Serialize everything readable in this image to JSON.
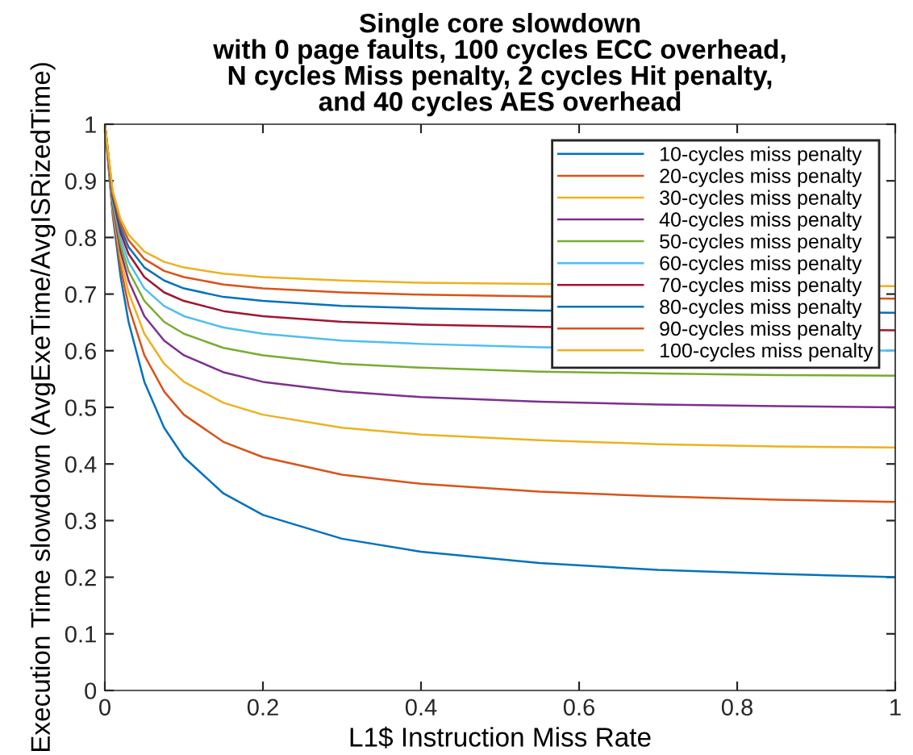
{
  "chart_data": {
    "type": "line",
    "title": "Single core slowdown\nwith 0 page faults, 100 cycles ECC overhead,\nN cycles Miss penalty, 2 cycles Hit penalty,\nand 40 cycles AES overhead",
    "xlabel": "L1$ Instruction Miss Rate",
    "ylabel": "Execution Time slowdown (AvgExeTime/AvgISRizedTime)",
    "x": [
      0,
      0.01,
      0.02,
      0.03,
      0.05,
      0.075,
      0.1,
      0.15,
      0.2,
      0.3,
      0.4,
      0.55,
      0.7,
      0.85,
      1
    ],
    "series": [
      {
        "name": "10-cycles miss penalty",
        "color": "#0072bd",
        "values": [
          1,
          0.839,
          0.73,
          0.651,
          0.545,
          0.464,
          0.412,
          0.348,
          0.31,
          0.268,
          0.245,
          0.225,
          0.213,
          0.206,
          0.2
        ]
      },
      {
        "name": "20-cycles miss penalty",
        "color": "#d95319",
        "values": [
          1,
          0.845,
          0.747,
          0.679,
          0.592,
          0.528,
          0.487,
          0.439,
          0.412,
          0.381,
          0.365,
          0.351,
          0.343,
          0.337,
          0.333
        ]
      },
      {
        "name": "30-cycles miss penalty",
        "color": "#edb120",
        "values": [
          1,
          0.851,
          0.762,
          0.703,
          0.63,
          0.577,
          0.545,
          0.508,
          0.487,
          0.464,
          0.452,
          0.442,
          0.435,
          0.431,
          0.429
        ]
      },
      {
        "name": "40-cycles miss penalty",
        "color": "#7e2f8e",
        "values": [
          1,
          0.856,
          0.775,
          0.724,
          0.661,
          0.618,
          0.592,
          0.562,
          0.545,
          0.528,
          0.518,
          0.51,
          0.505,
          0.502,
          0.5
        ]
      },
      {
        "name": "50-cycles miss penalty",
        "color": "#77ac30",
        "values": [
          1,
          0.861,
          0.787,
          0.741,
          0.688,
          0.651,
          0.63,
          0.605,
          0.592,
          0.577,
          0.57,
          0.563,
          0.56,
          0.557,
          0.556
        ]
      },
      {
        "name": "60-cycles miss penalty",
        "color": "#4dbeee",
        "x": [
          0,
          0.01,
          0.02,
          0.03,
          0.05,
          0.075,
          0.1,
          0.15,
          0.2,
          0.3,
          0.4,
          0.55,
          1
        ],
        "values": [
          1,
          0.866,
          0.798,
          0.757,
          0.71,
          0.679,
          0.661,
          0.641,
          0.63,
          0.618,
          0.612,
          0.606,
          0.6
        ]
      },
      {
        "name": "70-cycles miss penalty",
        "color": "#a2142f",
        "x": [
          0,
          0.01,
          0.02,
          0.03,
          0.05,
          0.075,
          0.1,
          0.15,
          0.2,
          0.3,
          0.4,
          0.55,
          1
        ],
        "values": [
          1,
          0.87,
          0.808,
          0.771,
          0.73,
          0.703,
          0.688,
          0.67,
          0.661,
          0.651,
          0.646,
          0.642,
          0.636
        ]
      },
      {
        "name": "80-cycles miss penalty",
        "color": "#0072bd",
        "x": [
          0,
          0.01,
          0.02,
          0.03,
          0.05,
          0.075,
          0.1,
          0.15,
          0.2,
          0.3,
          0.4,
          0.55,
          1
        ],
        "values": [
          1,
          0.874,
          0.817,
          0.783,
          0.747,
          0.724,
          0.71,
          0.695,
          0.688,
          0.679,
          0.675,
          0.671,
          0.667
        ]
      },
      {
        "name": "90-cycles miss penalty",
        "color": "#d95319",
        "x": [
          0,
          0.01,
          0.02,
          0.03,
          0.05,
          0.075,
          0.1,
          0.15,
          0.2,
          0.3,
          0.4,
          0.55,
          1
        ],
        "values": [
          1,
          0.878,
          0.825,
          0.795,
          0.762,
          0.741,
          0.73,
          0.717,
          0.71,
          0.703,
          0.699,
          0.696,
          0.692
        ]
      },
      {
        "name": "100-cycles miss penalty",
        "color": "#edb120",
        "x": [
          0,
          0.01,
          0.02,
          0.03,
          0.05,
          0.075,
          0.1,
          0.15,
          0.2,
          0.3,
          0.4,
          0.55,
          1
        ],
        "values": [
          1,
          0.882,
          0.832,
          0.805,
          0.775,
          0.757,
          0.747,
          0.736,
          0.73,
          0.724,
          0.72,
          0.718,
          0.714
        ]
      }
    ],
    "xlim": [
      0,
      1
    ],
    "ylim": [
      0,
      1
    ],
    "xticks": [
      0,
      0.2,
      0.4,
      0.6,
      0.8,
      1
    ],
    "yticks": [
      0,
      0.1,
      0.2,
      0.3,
      0.4,
      0.5,
      0.6,
      0.7,
      0.8,
      0.9,
      1
    ],
    "grid": false,
    "legend": "top right",
    "marker": "none",
    "line_style": "solid"
  }
}
